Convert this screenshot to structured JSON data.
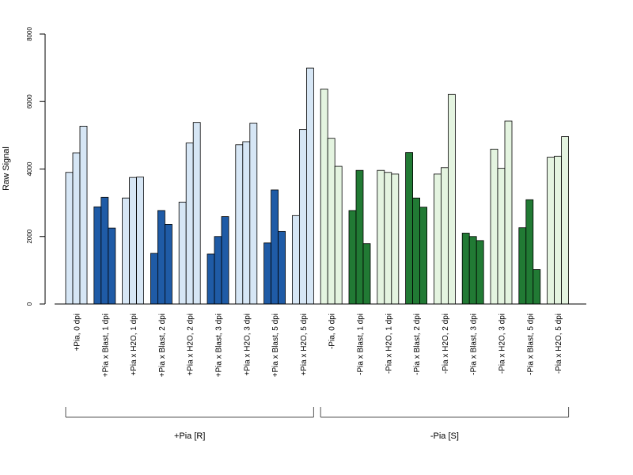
{
  "chart_data": {
    "type": "bar",
    "ylabel": "Raw Signal",
    "ylim": [
      0,
      8000
    ],
    "yticks": [
      0,
      2000,
      4000,
      6000,
      8000
    ],
    "grid": false,
    "categories": [
      "+Pia, 0 dpi",
      "+Pia x Blast, 1 dpi",
      "+Pia x H2O, 1 dpi",
      "+Pia x Blast, 2 dpi",
      "+Pia x H2O, 2 dpi",
      "+Pia x Blast, 3 dpi",
      "+Pia x H2O, 3 dpi",
      "+Pia x Blast, 5 dpi",
      "+Pia x H2O, 5 dpi",
      "-Pia, 0 dpi",
      "-Pia x Blast, 1 dpi",
      "-Pia x H2O, 1 dpi",
      "-Pia x Blast, 2 dpi",
      "-Pia x H2O, 2 dpi",
      "-Pia x Blast, 3 dpi",
      "-Pia x H2O, 3 dpi",
      "-Pia x Blast, 5 dpi",
      "-Pia x H2O, 5 dpi"
    ],
    "values": [
      [
        3900,
        4480,
        5270
      ],
      [
        2880,
        3160,
        2250
      ],
      [
        3140,
        3750,
        3760
      ],
      [
        1500,
        2770,
        2360
      ],
      [
        3020,
        4770,
        5380
      ],
      [
        1480,
        2000,
        2590
      ],
      [
        4720,
        4810,
        5360
      ],
      [
        1810,
        3380,
        2150
      ],
      [
        2620,
        5170,
        6990
      ],
      [
        6370,
        4910,
        4080
      ],
      [
        2770,
        3960,
        1790
      ],
      [
        3960,
        3900,
        3850
      ],
      [
        4490,
        3140,
        2870
      ],
      [
        3850,
        4040,
        6210
      ],
      [
        2100,
        2000,
        1880
      ],
      [
        4590,
        4020,
        5420
      ],
      [
        2260,
        3090,
        1020
      ],
      [
        4350,
        4380,
        4960
      ]
    ],
    "fill_colors": [
      "#d6e6f5",
      "#1f5ba6",
      "#d6e6f5",
      "#1f5ba6",
      "#d6e6f5",
      "#1f5ba6",
      "#d6e6f5",
      "#1f5ba6",
      "#d6e6f5",
      "#e4f4e0",
      "#217a34",
      "#e4f4e0",
      "#217a34",
      "#e4f4e0",
      "#217a34",
      "#e4f4e0",
      "#217a34",
      "#e4f4e0"
    ],
    "groups": [
      {
        "label": "+Pia [R]",
        "from": 0,
        "to": 8
      },
      {
        "label": "-Pia [S]",
        "from": 9,
        "to": 17
      }
    ]
  }
}
